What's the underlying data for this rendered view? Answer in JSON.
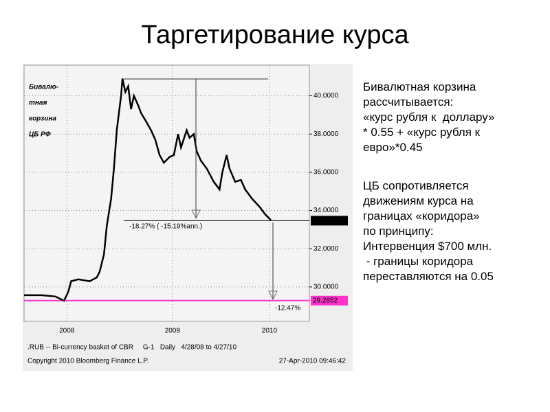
{
  "title": "Таргетирование курса",
  "paragraphs": [
    [
      "Бивалютная корзина",
      "рассчитывается:",
      "«курс рубля к  доллару»",
      "* 0.55 + «курс рубля к",
      "евро»*0.45"
    ],
    [
      "ЦБ сопротивляется",
      "движениям курса на",
      "границах «коридора»",
      "по принципу:",
      "Интервенция $700 млн.",
      " - границы коридора",
      "переставляются на 0.05"
    ]
  ],
  "chart_data": {
    "type": "line",
    "caption": [
      "Бивалю-",
      "тная",
      "корзина",
      "ЦБ РФ"
    ],
    "x": [
      2008.33,
      2008.45,
      2008.55,
      2008.61,
      2008.64,
      2008.66,
      2008.71,
      2008.79,
      2008.84,
      2008.86,
      2008.89,
      2008.91,
      2008.94,
      2008.96,
      2008.98,
      2009.01,
      2009.02,
      2009.04,
      2009.06,
      2009.08,
      2009.1,
      2009.13,
      2009.15,
      2009.19,
      2009.22,
      2009.25,
      2009.28,
      2009.31,
      2009.35,
      2009.38,
      2009.41,
      2009.43,
      2009.47,
      2009.49,
      2009.52,
      2009.54,
      2009.57,
      2009.61,
      2009.66,
      2009.7,
      2009.72,
      2009.75,
      2009.77,
      2009.81,
      2009.85,
      2009.88,
      2009.93,
      2009.98,
      2010.02,
      2010.06
    ],
    "series": [
      {
        "color": "#000000",
        "values": [
          29.57,
          29.57,
          29.5,
          29.28,
          29.75,
          30.3,
          30.4,
          30.3,
          30.5,
          30.8,
          31.7,
          33.2,
          34.6,
          36.2,
          38.2,
          40.0,
          40.9,
          40.2,
          40.5,
          39.3,
          40.0,
          39.5,
          39.1,
          38.6,
          38.2,
          37.7,
          36.9,
          36.5,
          36.8,
          36.9,
          38.0,
          37.3,
          38.2,
          37.8,
          38.0,
          37.1,
          36.6,
          36.2,
          35.5,
          35.1,
          36.0,
          36.9,
          36.2,
          35.5,
          35.6,
          35.1,
          34.6,
          34.2,
          33.8,
          33.5
        ]
      }
    ],
    "xlim": [
      2008.33,
      2010.33
    ],
    "xticks": [
      {
        "value": 2008.63,
        "label": "2008"
      },
      {
        "value": 2009.37,
        "label": "2009"
      },
      {
        "value": 2010.05,
        "label": "2010"
      }
    ],
    "ylim": [
      28.2,
      41.6
    ],
    "yticks": [
      {
        "value": 30,
        "label": "30.0000"
      },
      {
        "value": 32,
        "label": "32.0000"
      },
      {
        "value": 34,
        "label": "34.0000"
      },
      {
        "value": 36,
        "label": "36.0000"
      },
      {
        "value": 38,
        "label": "38.0000"
      },
      {
        "value": 40,
        "label": "40.0000"
      }
    ],
    "grid": true,
    "hlines": [
      {
        "value": 33.4684,
        "color": "#000000"
      },
      {
        "value": 29.2852,
        "color": "#ff33cc"
      }
    ],
    "annotations": [
      "-18.27% ( -15.19%ann.)",
      "-12.47%"
    ],
    "footer": [
      ".RUB -- Bi-currency basket of CBR     G-1   Daily   4/28/08 to 4/27/10",
      "Copyright 2010 Bloomberg Finance L.P.",
      "27-Apr-2010 09:46:42"
    ]
  }
}
